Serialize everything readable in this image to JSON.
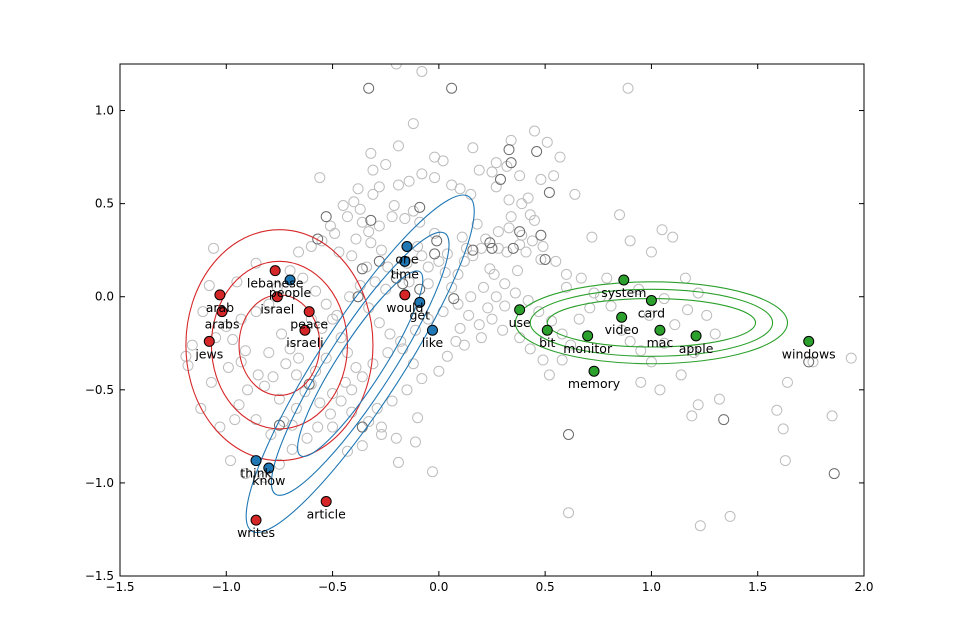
{
  "chart_data": {
    "type": "scatter",
    "title": "",
    "xlabel": "",
    "ylabel": "",
    "xlim": [
      -1.5,
      2.0
    ],
    "ylim": [
      -1.5,
      1.25
    ],
    "xticks": [
      "−1.5",
      "−1.0",
      "−0.5",
      "0.0",
      "0.5",
      "1.0",
      "1.5",
      "2.0"
    ],
    "yticks": [
      "−1.5",
      "−1.0",
      "−0.5",
      "0.0",
      "0.5",
      "1.0"
    ],
    "xtick_values": [
      -1.5,
      -1.0,
      -0.5,
      0.0,
      0.5,
      1.0,
      1.5,
      2.0
    ],
    "ytick_values": [
      -1.5,
      -1.0,
      -0.5,
      0.0,
      0.5,
      1.0
    ],
    "grid": false,
    "background_points": [
      [
        -0.56,
        0.64
      ],
      [
        -0.28,
        0.59
      ],
      [
        -0.38,
        0.58
      ],
      [
        -0.31,
        0.55
      ],
      [
        -0.21,
        0.49
      ],
      [
        -0.12,
        0.46
      ],
      [
        -0.09,
        0.4
      ],
      [
        -0.43,
        0.43
      ],
      [
        -0.36,
        0.4
      ],
      [
        -0.16,
        0.42
      ],
      [
        -0.22,
        0.43
      ],
      [
        -0.28,
        0.38
      ],
      [
        -0.49,
        0.34
      ],
      [
        -0.55,
        0.3
      ],
      [
        -0.6,
        0.27
      ],
      [
        -0.66,
        0.24
      ],
      [
        -0.39,
        0.31
      ],
      [
        -0.32,
        0.29
      ],
      [
        -0.41,
        0.22
      ],
      [
        -0.47,
        0.24
      ],
      [
        -0.34,
        0.16
      ],
      [
        -0.3,
        0.08
      ],
      [
        -0.25,
        0.04
      ],
      [
        -0.14,
        0.08
      ],
      [
        -0.05,
        0.07
      ],
      [
        0.03,
        0.13
      ],
      [
        0.09,
        0.12
      ],
      [
        0.04,
        0.23
      ],
      [
        -0.1,
        0.27
      ],
      [
        -0.02,
        0.34
      ],
      [
        0.11,
        0.32
      ],
      [
        0.13,
        0.26
      ],
      [
        0.18,
        0.39
      ],
      [
        0.22,
        0.31
      ],
      [
        0.28,
        0.35
      ],
      [
        0.32,
        0.24
      ],
      [
        0.34,
        0.43
      ],
      [
        0.39,
        0.33
      ],
      [
        0.45,
        0.41
      ],
      [
        0.49,
        0.27
      ],
      [
        0.55,
        0.19
      ],
      [
        0.48,
        0.2
      ],
      [
        0.41,
        0.24
      ],
      [
        0.37,
        0.14
      ],
      [
        0.31,
        0.07
      ],
      [
        0.26,
        0.12
      ],
      [
        0.21,
        0.05
      ],
      [
        0.15,
        0.0
      ],
      [
        0.09,
        -0.04
      ],
      [
        0.02,
        -0.08
      ],
      [
        -0.05,
        -0.12
      ],
      [
        -0.11,
        -0.18
      ],
      [
        -0.18,
        -0.24
      ],
      [
        -0.24,
        -0.3
      ],
      [
        -0.31,
        -0.36
      ],
      [
        -0.36,
        -0.43
      ],
      [
        -0.41,
        -0.5
      ],
      [
        -0.46,
        -0.56
      ],
      [
        -0.51,
        -0.63
      ],
      [
        -0.57,
        -0.7
      ],
      [
        -0.62,
        -0.76
      ],
      [
        -0.69,
        -0.82
      ],
      [
        -0.75,
        -0.9
      ],
      [
        -0.82,
        -0.97
      ],
      [
        -0.91,
        -0.95
      ],
      [
        -0.98,
        -0.88
      ],
      [
        -1.03,
        -0.7
      ],
      [
        -1.07,
        -0.46
      ],
      [
        -1.12,
        -0.6
      ],
      [
        -1.18,
        -0.37
      ],
      [
        -1.19,
        -0.32
      ],
      [
        -1.16,
        -0.26
      ],
      [
        -1.05,
        -0.22
      ],
      [
        -1.0,
        -0.16
      ],
      [
        -0.93,
        -0.12
      ],
      [
        -0.86,
        -0.08
      ],
      [
        -0.8,
        -0.04
      ],
      [
        -0.76,
        0.05
      ],
      [
        -0.7,
        0.14
      ],
      [
        -0.64,
        0.1
      ],
      [
        -0.58,
        0.03
      ],
      [
        -0.53,
        -0.04
      ],
      [
        -0.5,
        -0.12
      ],
      [
        -0.46,
        -0.22
      ],
      [
        -0.43,
        -0.3
      ],
      [
        -0.39,
        -0.38
      ],
      [
        -0.44,
        -0.46
      ],
      [
        -0.5,
        -0.52
      ],
      [
        -0.56,
        -0.57
      ],
      [
        -0.6,
        -0.47
      ],
      [
        -0.67,
        -0.42
      ],
      [
        -0.72,
        -0.36
      ],
      [
        -0.8,
        -0.3
      ],
      [
        -0.85,
        -0.42
      ],
      [
        -0.9,
        -0.5
      ],
      [
        -0.94,
        -0.58
      ],
      [
        -0.86,
        -0.66
      ],
      [
        -0.79,
        -0.74
      ],
      [
        -0.73,
        -0.67
      ],
      [
        -0.67,
        -0.6
      ],
      [
        -0.63,
        -0.51
      ],
      [
        -0.58,
        -0.4
      ],
      [
        -0.53,
        -0.33
      ],
      [
        -0.48,
        -0.1
      ],
      [
        -0.42,
        0.0
      ],
      [
        -0.37,
        0.06
      ],
      [
        -0.33,
        -0.06
      ],
      [
        -0.28,
        -0.14
      ],
      [
        -0.23,
        -0.2
      ],
      [
        -0.17,
        -0.28
      ],
      [
        -0.12,
        -0.36
      ],
      [
        -0.08,
        -0.44
      ],
      [
        -0.15,
        -0.5
      ],
      [
        -0.22,
        -0.56
      ],
      [
        -0.29,
        -0.6
      ],
      [
        -0.33,
        -0.67
      ],
      [
        -0.27,
        -0.7
      ],
      [
        -0.2,
        -0.76
      ],
      [
        -0.1,
        -0.65
      ],
      [
        0.0,
        -0.4
      ],
      [
        0.04,
        -0.32
      ],
      [
        0.08,
        -0.24
      ],
      [
        0.1,
        -0.17
      ],
      [
        0.14,
        -0.1
      ],
      [
        0.19,
        -0.15
      ],
      [
        0.23,
        -0.06
      ],
      [
        0.27,
        0.0
      ],
      [
        0.31,
        -0.05
      ],
      [
        0.36,
        0.02
      ],
      [
        0.42,
        -0.02
      ],
      [
        0.47,
        -0.08
      ],
      [
        0.53,
        -0.13
      ],
      [
        0.58,
        -0.2
      ],
      [
        0.62,
        -0.26
      ],
      [
        0.66,
        -0.12
      ],
      [
        0.71,
        -0.06
      ],
      [
        0.76,
        0.0
      ],
      [
        0.81,
        -0.05
      ],
      [
        0.86,
        -0.18
      ],
      [
        0.9,
        -0.24
      ],
      [
        0.95,
        -0.29
      ],
      [
        1.0,
        -0.35
      ],
      [
        1.06,
        -0.25
      ],
      [
        1.11,
        -0.15
      ],
      [
        1.17,
        -0.07
      ],
      [
        1.22,
        0.02
      ],
      [
        1.26,
        -0.1
      ],
      [
        1.3,
        -0.2
      ],
      [
        1.2,
        -0.3
      ],
      [
        1.14,
        -0.42
      ],
      [
        1.04,
        -0.5
      ],
      [
        0.95,
        -0.46
      ],
      [
        0.6,
        0.05
      ],
      [
        0.64,
        0.55
      ],
      [
        0.72,
        0.32
      ],
      [
        0.85,
        0.44
      ],
      [
        0.9,
        0.3
      ],
      [
        1.0,
        0.24
      ],
      [
        1.05,
        0.36
      ],
      [
        1.1,
        0.32
      ],
      [
        0.57,
        0.75
      ],
      [
        0.54,
        0.65
      ],
      [
        0.48,
        0.63
      ],
      [
        0.43,
        0.44
      ],
      [
        0.42,
        0.53
      ],
      [
        0.39,
        0.5
      ],
      [
        0.33,
        0.52
      ],
      [
        0.27,
        0.59
      ],
      [
        0.15,
        0.55
      ],
      [
        0.1,
        0.58
      ],
      [
        0.06,
        0.6
      ],
      [
        0.02,
        0.73
      ],
      [
        -0.02,
        0.64
      ],
      [
        -0.08,
        0.66
      ],
      [
        -0.14,
        0.62
      ],
      [
        -0.19,
        0.6
      ],
      [
        -0.25,
        0.71
      ],
      [
        -0.31,
        0.68
      ],
      [
        -0.32,
        0.77
      ],
      [
        -0.19,
        0.81
      ],
      [
        -0.12,
        0.93
      ],
      [
        -0.02,
        0.75
      ],
      [
        0.16,
        0.8
      ],
      [
        0.19,
        0.68
      ],
      [
        0.27,
        0.72
      ],
      [
        0.34,
        0.84
      ],
      [
        0.45,
        0.89
      ],
      [
        0.51,
        0.83
      ],
      [
        0.38,
        0.65
      ],
      [
        0.32,
        0.7
      ],
      [
        0.25,
        0.67
      ],
      [
        -0.2,
        1.25
      ],
      [
        -0.08,
        1.21
      ],
      [
        0.89,
        1.12
      ],
      [
        1.22,
        -0.58
      ],
      [
        1.32,
        -0.55
      ],
      [
        1.23,
        -1.23
      ],
      [
        1.37,
        -1.18
      ],
      [
        1.59,
        -0.61
      ],
      [
        1.62,
        -0.71
      ],
      [
        1.64,
        -0.46
      ],
      [
        1.63,
        -0.88
      ],
      [
        1.76,
        -0.35
      ],
      [
        1.85,
        -0.64
      ],
      [
        1.94,
        -0.33
      ],
      [
        0.61,
        -1.16
      ],
      [
        1.19,
        -0.64
      ],
      [
        0.49,
        -0.34
      ],
      [
        0.58,
        -0.34
      ],
      [
        0.52,
        -0.42
      ],
      [
        0.43,
        -0.28
      ],
      [
        0.38,
        -0.22
      ],
      [
        0.3,
        -0.18
      ],
      [
        0.25,
        -0.12
      ],
      [
        0.2,
        -0.22
      ],
      [
        0.12,
        -0.26
      ],
      [
        -0.03,
        -0.94
      ],
      [
        -0.11,
        -0.78
      ],
      [
        -0.19,
        -0.89
      ],
      [
        -0.27,
        -0.74
      ],
      [
        -0.36,
        -0.8
      ],
      [
        -0.43,
        -0.83
      ],
      [
        -0.5,
        -0.7
      ],
      [
        -0.41,
        -0.62
      ],
      [
        -0.69,
        -0.69
      ],
      [
        -0.75,
        -0.55
      ],
      [
        -0.82,
        -0.48
      ],
      [
        -0.78,
        -0.43
      ],
      [
        -0.96,
        -0.66
      ],
      [
        -0.99,
        -0.38
      ],
      [
        -0.74,
        -0.2
      ],
      [
        -0.7,
        -0.28
      ],
      [
        -0.66,
        -0.33
      ],
      [
        -0.6,
        -0.12
      ],
      [
        -0.55,
        -0.17
      ],
      [
        -0.51,
        0.38
      ],
      [
        -0.45,
        0.49
      ],
      [
        -0.4,
        0.51
      ],
      [
        -0.37,
        0.47
      ],
      [
        -0.33,
        0.35
      ],
      [
        -0.27,
        0.25
      ],
      [
        -0.24,
        0.16
      ],
      [
        -0.2,
        0.1
      ],
      [
        -0.15,
        0.18
      ],
      [
        -0.08,
        0.22
      ],
      [
        -0.05,
        0.16
      ],
      [
        0.0,
        0.19
      ],
      [
        0.06,
        0.05
      ],
      [
        0.12,
        0.19
      ],
      [
        0.16,
        0.22
      ],
      [
        0.2,
        0.26
      ],
      [
        0.24,
        0.15
      ],
      [
        0.28,
        0.26
      ],
      [
        0.33,
        0.37
      ],
      [
        0.38,
        0.28
      ],
      [
        0.44,
        0.3
      ],
      [
        0.6,
        0.12
      ],
      [
        0.67,
        0.1
      ],
      [
        0.73,
        0.02
      ],
      [
        0.79,
        0.1
      ],
      [
        0.94,
        0.04
      ],
      [
        0.99,
        -0.1
      ],
      [
        1.06,
        -0.01
      ],
      [
        1.16,
        0.1
      ],
      [
        -1.06,
        0.26
      ],
      [
        -1.08,
        0.06
      ],
      [
        -1.11,
        -0.08
      ],
      [
        -0.95,
        0.08
      ],
      [
        -0.86,
        0.18
      ],
      [
        -0.91,
        -0.29
      ],
      [
        -0.97,
        -0.23
      ],
      [
        -0.93,
        -0.35
      ]
    ],
    "dark_points": [
      [
        -0.33,
        1.12
      ],
      [
        0.06,
        1.12
      ],
      [
        -0.53,
        0.43
      ],
      [
        -0.32,
        0.41
      ],
      [
        -0.09,
        0.48
      ],
      [
        -0.57,
        0.31
      ],
      [
        -0.36,
        0.15
      ],
      [
        -0.28,
        0.19
      ],
      [
        -0.17,
        0.07
      ],
      [
        -0.09,
        0.04
      ],
      [
        -0.01,
        0.3
      ],
      [
        0.29,
        0.63
      ],
      [
        0.34,
        0.72
      ],
      [
        0.33,
        0.79
      ],
      [
        0.46,
        0.78
      ],
      [
        0.52,
        0.56
      ],
      [
        0.16,
        0.25
      ],
      [
        0.25,
        0.26
      ],
      [
        0.24,
        0.29
      ],
      [
        0.35,
        0.26
      ],
      [
        0.38,
        0.35
      ],
      [
        0.48,
        0.33
      ],
      [
        0.5,
        0.2
      ],
      [
        -0.02,
        0.23
      ],
      [
        -0.75,
        -0.69
      ],
      [
        -0.61,
        -0.47
      ],
      [
        -0.36,
        -0.7
      ],
      [
        -0.38,
        0.0
      ],
      [
        0.07,
        -0.01
      ],
      [
        -0.2,
        0.1
      ],
      [
        1.34,
        -0.66
      ],
      [
        1.86,
        -0.95
      ],
      [
        0.61,
        -0.74
      ],
      [
        1.74,
        -0.35
      ]
    ],
    "series": [
      {
        "name": "",
        "color": "#d62728",
        "points": [
          {
            "label": "lebanese",
            "x": -0.77,
            "y": 0.14
          },
          {
            "label": "israel",
            "x": -0.76,
            "y": 0.0
          },
          {
            "label": "arab",
            "x": -1.03,
            "y": 0.01
          },
          {
            "label": "arabs",
            "x": -1.02,
            "y": -0.08
          },
          {
            "label": "peace",
            "x": -0.61,
            "y": -0.08
          },
          {
            "label": "israeli",
            "x": -0.63,
            "y": -0.18
          },
          {
            "label": "jews",
            "x": -1.08,
            "y": -0.24
          },
          {
            "label": "would",
            "x": -0.16,
            "y": 0.01
          },
          {
            "label": "article",
            "x": -0.53,
            "y": -1.1
          },
          {
            "label": "writes",
            "x": -0.86,
            "y": -1.2
          }
        ],
        "ellipse": {
          "cx": -0.75,
          "cy": -0.26,
          "rx": [
            0.44,
            0.32,
            0.19
          ],
          "ry": [
            0.62,
            0.45,
            0.27
          ],
          "angle_deg": 0
        }
      },
      {
        "name": "",
        "color": "#1f77b4",
        "points": [
          {
            "label": "one",
            "x": -0.15,
            "y": 0.27
          },
          {
            "label": "time",
            "x": -0.16,
            "y": 0.19
          },
          {
            "label": "people",
            "x": -0.7,
            "y": 0.09
          },
          {
            "label": "get",
            "x": -0.09,
            "y": -0.03
          },
          {
            "label": "like",
            "x": -0.03,
            "y": -0.18
          },
          {
            "label": "think",
            "x": -0.86,
            "y": -0.88
          },
          {
            "label": "know",
            "x": -0.8,
            "y": -0.92
          }
        ],
        "ellipse": {
          "cx": -0.37,
          "cy": -0.36,
          "rx": [
            1.0,
            0.78,
            0.55
          ],
          "ry": [
            0.13,
            0.1,
            0.07
          ],
          "angle_deg": 57
        }
      },
      {
        "name": "",
        "color": "#2ca02c",
        "points": [
          {
            "label": "system",
            "x": 0.87,
            "y": 0.09
          },
          {
            "label": "card",
            "x": 1.0,
            "y": -0.02
          },
          {
            "label": "use",
            "x": 0.38,
            "y": -0.07
          },
          {
            "label": "video",
            "x": 0.86,
            "y": -0.11
          },
          {
            "label": "bit",
            "x": 0.51,
            "y": -0.18
          },
          {
            "label": "mac",
            "x": 1.04,
            "y": -0.18
          },
          {
            "label": "monitor",
            "x": 0.7,
            "y": -0.21
          },
          {
            "label": "apple",
            "x": 1.21,
            "y": -0.21
          },
          {
            "label": "windows",
            "x": 1.74,
            "y": -0.24
          },
          {
            "label": "memory",
            "x": 0.73,
            "y": -0.4
          }
        ],
        "ellipse": {
          "cx": 1.0,
          "cy": -0.14,
          "rx": [
            0.64,
            0.57,
            0.49
          ],
          "ry": [
            0.22,
            0.18,
            0.13
          ],
          "angle_deg": 0
        }
      }
    ]
  }
}
